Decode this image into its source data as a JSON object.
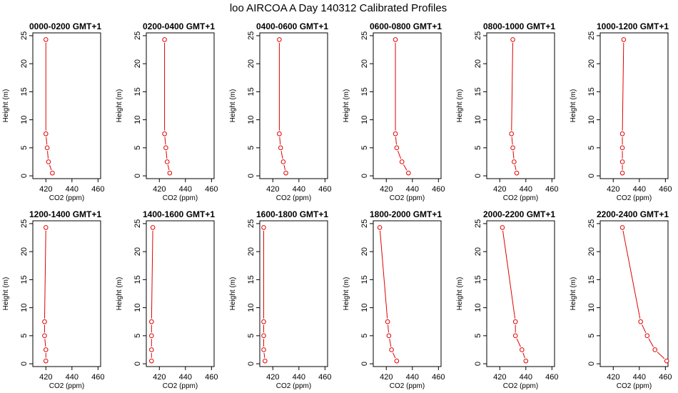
{
  "title": "loo AIRCOA A  Day 140312  Calibrated Profiles",
  "chart_data": [
    {
      "type": "line",
      "title": "0000-0200 GMT+1",
      "xlabel": "CO2 (ppm)",
      "ylabel": "Height (m)",
      "xlim": [
        410,
        462
      ],
      "ylim": [
        -0.5,
        25.5
      ],
      "xticks": [
        420,
        440,
        460
      ],
      "yticks": [
        0,
        5,
        10,
        15,
        20,
        25
      ],
      "grid": false,
      "series": [
        {
          "points": [
            {
              "x": 425,
              "y": 0.5
            },
            {
              "x": 422,
              "y": 2.5
            },
            {
              "x": 421,
              "y": 5
            },
            {
              "x": 420,
              "y": 7.5
            },
            {
              "x": 420,
              "y": 24.3
            }
          ],
          "color": "#e00000"
        }
      ]
    },
    {
      "type": "line",
      "title": "0200-0400 GMT+1",
      "xlabel": "CO2 (ppm)",
      "ylabel": "Height (m)",
      "xlim": [
        410,
        462
      ],
      "ylim": [
        -0.5,
        25.5
      ],
      "xticks": [
        420,
        440,
        460
      ],
      "yticks": [
        0,
        5,
        10,
        15,
        20,
        25
      ],
      "grid": false,
      "series": [
        {
          "points": [
            {
              "x": 428,
              "y": 0.5
            },
            {
              "x": 426,
              "y": 2.5
            },
            {
              "x": 425,
              "y": 5
            },
            {
              "x": 424,
              "y": 7.5
            },
            {
              "x": 424,
              "y": 24.3
            }
          ],
          "color": "#e00000"
        }
      ]
    },
    {
      "type": "line",
      "title": "0400-0600 GMT+1",
      "xlabel": "CO2 (ppm)",
      "ylabel": "Height (m)",
      "xlim": [
        410,
        462
      ],
      "ylim": [
        -0.5,
        25.5
      ],
      "xticks": [
        420,
        440,
        460
      ],
      "yticks": [
        0,
        5,
        10,
        15,
        20,
        25
      ],
      "grid": false,
      "series": [
        {
          "points": [
            {
              "x": 430,
              "y": 0.5
            },
            {
              "x": 428,
              "y": 2.5
            },
            {
              "x": 426,
              "y": 5
            },
            {
              "x": 425,
              "y": 7.5
            },
            {
              "x": 425,
              "y": 24.3
            }
          ],
          "color": "#e00000"
        }
      ]
    },
    {
      "type": "line",
      "title": "0600-0800 GMT+1",
      "xlabel": "CO2 (ppm)",
      "ylabel": "Height (m)",
      "xlim": [
        410,
        462
      ],
      "ylim": [
        -0.5,
        25.5
      ],
      "xticks": [
        420,
        440,
        460
      ],
      "yticks": [
        0,
        5,
        10,
        15,
        20,
        25
      ],
      "grid": false,
      "series": [
        {
          "points": [
            {
              "x": 437,
              "y": 0.5
            },
            {
              "x": 432,
              "y": 2.5
            },
            {
              "x": 428,
              "y": 5
            },
            {
              "x": 427,
              "y": 7.5
            },
            {
              "x": 427,
              "y": 24.3
            }
          ],
          "color": "#e00000"
        }
      ]
    },
    {
      "type": "line",
      "title": "0800-1000 GMT+1",
      "xlabel": "CO2 (ppm)",
      "ylabel": "Height (m)",
      "xlim": [
        410,
        462
      ],
      "ylim": [
        -0.5,
        25.5
      ],
      "xticks": [
        420,
        440,
        460
      ],
      "yticks": [
        0,
        5,
        10,
        15,
        20,
        25
      ],
      "grid": false,
      "series": [
        {
          "points": [
            {
              "x": 433,
              "y": 0.5
            },
            {
              "x": 431,
              "y": 2.5
            },
            {
              "x": 430,
              "y": 5
            },
            {
              "x": 429,
              "y": 7.5
            },
            {
              "x": 430,
              "y": 24.3
            }
          ],
          "color": "#e00000"
        }
      ]
    },
    {
      "type": "line",
      "title": "1000-1200 GMT+1",
      "xlabel": "CO2 (ppm)",
      "ylabel": "Height (m)",
      "xlim": [
        410,
        462
      ],
      "ylim": [
        -0.5,
        25.5
      ],
      "xticks": [
        420,
        440,
        460
      ],
      "yticks": [
        0,
        5,
        10,
        15,
        20,
        25
      ],
      "grid": false,
      "series": [
        {
          "points": [
            {
              "x": 427,
              "y": 0.5
            },
            {
              "x": 427,
              "y": 2.5
            },
            {
              "x": 427,
              "y": 5
            },
            {
              "x": 427,
              "y": 7.5
            },
            {
              "x": 428,
              "y": 24.3
            }
          ],
          "color": "#e00000"
        }
      ]
    },
    {
      "type": "line",
      "title": "1200-1400 GMT+1",
      "xlabel": "CO2 (ppm)",
      "ylabel": "Height (m)",
      "xlim": [
        410,
        462
      ],
      "ylim": [
        -0.5,
        25.5
      ],
      "xticks": [
        420,
        440,
        460
      ],
      "yticks": [
        0,
        5,
        10,
        15,
        20,
        25
      ],
      "grid": false,
      "series": [
        {
          "points": [
            {
              "x": 420,
              "y": 0.5
            },
            {
              "x": 420,
              "y": 2.5
            },
            {
              "x": 419,
              "y": 5
            },
            {
              "x": 419,
              "y": 7.5
            },
            {
              "x": 420,
              "y": 24.3
            }
          ],
          "color": "#e00000"
        }
      ]
    },
    {
      "type": "line",
      "title": "1400-1600 GMT+1",
      "xlabel": "CO2 (ppm)",
      "ylabel": "Height (m)",
      "xlim": [
        410,
        462
      ],
      "ylim": [
        -0.5,
        25.5
      ],
      "xticks": [
        420,
        440,
        460
      ],
      "yticks": [
        0,
        5,
        10,
        15,
        20,
        25
      ],
      "grid": false,
      "series": [
        {
          "points": [
            {
              "x": 414,
              "y": 0.5
            },
            {
              "x": 414,
              "y": 2.5
            },
            {
              "x": 414,
              "y": 5
            },
            {
              "x": 414,
              "y": 7.5
            },
            {
              "x": 415,
              "y": 24.3
            }
          ],
          "color": "#e00000"
        }
      ]
    },
    {
      "type": "line",
      "title": "1600-1800 GMT+1",
      "xlabel": "CO2 (ppm)",
      "ylabel": "Height (m)",
      "xlim": [
        410,
        462
      ],
      "ylim": [
        -0.5,
        25.5
      ],
      "xticks": [
        420,
        440,
        460
      ],
      "yticks": [
        0,
        5,
        10,
        15,
        20,
        25
      ],
      "grid": false,
      "series": [
        {
          "points": [
            {
              "x": 414,
              "y": 0.5
            },
            {
              "x": 413,
              "y": 2.5
            },
            {
              "x": 413,
              "y": 5
            },
            {
              "x": 413,
              "y": 7.5
            },
            {
              "x": 413,
              "y": 24.3
            }
          ],
          "color": "#e00000"
        }
      ]
    },
    {
      "type": "line",
      "title": "1800-2000 GMT+1",
      "xlabel": "CO2 (ppm)",
      "ylabel": "Height (m)",
      "xlim": [
        410,
        462
      ],
      "ylim": [
        -0.5,
        25.5
      ],
      "xticks": [
        420,
        440,
        460
      ],
      "yticks": [
        0,
        5,
        10,
        15,
        20,
        25
      ],
      "grid": false,
      "series": [
        {
          "points": [
            {
              "x": 428,
              "y": 0.5
            },
            {
              "x": 424,
              "y": 2.5
            },
            {
              "x": 422,
              "y": 5
            },
            {
              "x": 421,
              "y": 7.5
            },
            {
              "x": 415,
              "y": 24.3
            }
          ],
          "color": "#e00000"
        }
      ]
    },
    {
      "type": "line",
      "title": "2000-2200 GMT+1",
      "xlabel": "CO2 (ppm)",
      "ylabel": "Height (m)",
      "xlim": [
        410,
        462
      ],
      "ylim": [
        -0.5,
        25.5
      ],
      "xticks": [
        420,
        440,
        460
      ],
      "yticks": [
        0,
        5,
        10,
        15,
        20,
        25
      ],
      "grid": false,
      "series": [
        {
          "points": [
            {
              "x": 440,
              "y": 0.5
            },
            {
              "x": 437,
              "y": 2.5
            },
            {
              "x": 432,
              "y": 5
            },
            {
              "x": 432,
              "y": 7.5
            },
            {
              "x": 422,
              "y": 24.3
            }
          ],
          "color": "#e00000"
        }
      ]
    },
    {
      "type": "line",
      "title": "2200-2400 GMT+1",
      "xlabel": "CO2 (ppm)",
      "ylabel": "Height (m)",
      "xlim": [
        410,
        462
      ],
      "ylim": [
        -0.5,
        25.5
      ],
      "xticks": [
        420,
        440,
        460
      ],
      "yticks": [
        0,
        5,
        10,
        15,
        20,
        25
      ],
      "grid": false,
      "series": [
        {
          "points": [
            {
              "x": 461,
              "y": 0.5
            },
            {
              "x": 452,
              "y": 2.5
            },
            {
              "x": 446,
              "y": 5
            },
            {
              "x": 441,
              "y": 7.5
            },
            {
              "x": 427,
              "y": 24.3
            }
          ],
          "color": "#e00000"
        }
      ]
    }
  ]
}
